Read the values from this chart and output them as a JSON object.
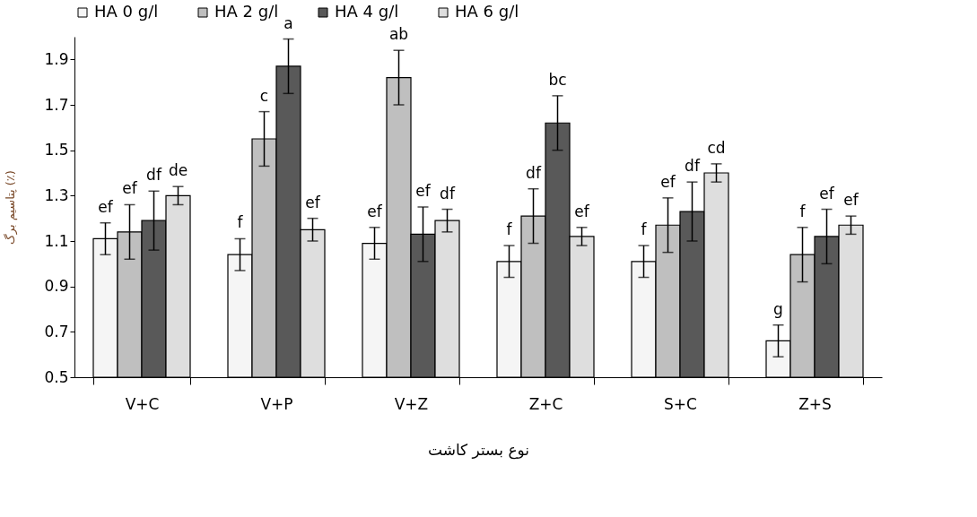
{
  "chart_data": {
    "type": "bar",
    "xlabel": "نوع بستر کاشت",
    "ylabel": "پتاسیم برگ (٪)",
    "categories": [
      "V+C",
      "V+P",
      "V+Z",
      "Z+C",
      "S+C",
      "Z+S"
    ],
    "series": [
      {
        "name": "HA 0 g/l",
        "color": "#f5f5f5",
        "values": [
          1.11,
          1.04,
          1.09,
          1.01,
          1.01,
          0.66
        ],
        "errors": [
          0.07,
          0.07,
          0.07,
          0.07,
          0.07,
          0.07
        ],
        "value_labels": [
          "ef",
          "f",
          "ef",
          "f",
          "f",
          "g"
        ]
      },
      {
        "name": "HA 2 g/l",
        "color": "#bfbfbf",
        "values": [
          1.14,
          1.55,
          1.82,
          1.21,
          1.17,
          1.04
        ],
        "errors": [
          0.12,
          0.12,
          0.12,
          0.12,
          0.12,
          0.12
        ],
        "value_labels": [
          "ef",
          "c",
          "ab",
          "df",
          "ef",
          "f"
        ]
      },
      {
        "name": "HA 4 g/l",
        "color": "#595959",
        "values": [
          1.19,
          1.87,
          1.13,
          1.62,
          1.23,
          1.12
        ],
        "errors": [
          0.13,
          0.12,
          0.12,
          0.12,
          0.13,
          0.12
        ],
        "value_labels": [
          "df",
          "a",
          "ef",
          "bc",
          "df",
          "ef"
        ]
      },
      {
        "name": "HA 6 g/l",
        "color": "#dedede",
        "values": [
          1.3,
          1.15,
          1.19,
          1.12,
          1.4,
          1.17
        ],
        "errors": [
          0.04,
          0.05,
          0.05,
          0.04,
          0.04,
          0.04
        ],
        "value_labels": [
          "de",
          "ef",
          "df",
          "ef",
          "cd",
          "ef"
        ]
      }
    ],
    "ylim": [
      0.5,
      2.0
    ],
    "yticks": [
      0.5,
      0.7,
      0.9,
      1.1,
      1.3,
      1.5,
      1.7,
      1.9
    ],
    "grid": false,
    "legend": "top"
  }
}
